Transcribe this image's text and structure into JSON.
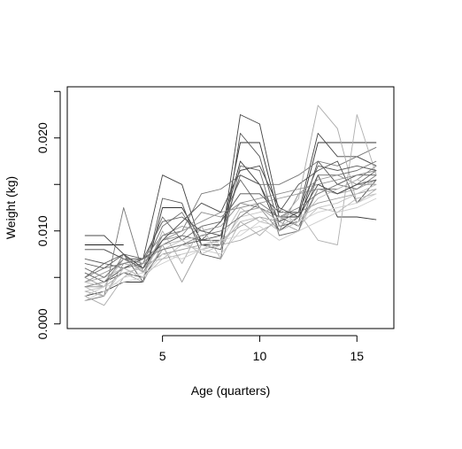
{
  "chart_data": {
    "type": "line",
    "xlabel": "Age (quarters)",
    "ylabel": "Weight (kg)",
    "xlim": [
      0.1,
      16.9
    ],
    "ylim": [
      -0.0005,
      0.0255
    ],
    "x_ticks": [
      5,
      10,
      15
    ],
    "x_tick_labels": [
      "5",
      "10",
      "15"
    ],
    "y_ticks": [
      0.0,
      0.005,
      0.01,
      0.015,
      0.02,
      0.025
    ],
    "y_tick_labels": [
      "0.000",
      "",
      "0.010",
      "",
      "0.020",
      ""
    ],
    "grid": false,
    "legend": "none",
    "x": [
      1,
      2,
      3,
      4,
      5,
      6,
      7,
      8,
      9,
      10,
      11,
      12,
      13,
      14,
      15,
      16
    ],
    "series": [
      {
        "color": "#222222",
        "values": [
          0.0085,
          0.0085,
          0.0085,
          null,
          null,
          null,
          null,
          null,
          null,
          null,
          null,
          null,
          null,
          null,
          null,
          null
        ]
      },
      {
        "color": "#333333",
        "values": [
          0.003,
          0.0035,
          0.0045,
          0.0045,
          0.0125,
          0.0125,
          0.009,
          0.009,
          0.0195,
          0.0195,
          0.0115,
          0.0115,
          0.0195,
          0.0195,
          0.0195,
          0.0195
        ]
      },
      {
        "color": "#444444",
        "values": [
          0.008,
          0.008,
          0.007,
          0.007,
          0.016,
          0.015,
          0.0085,
          0.0085,
          0.0225,
          0.0215,
          0.012,
          0.012,
          0.0205,
          0.018,
          0.018,
          0.017
        ]
      },
      {
        "color": "#555555",
        "values": [
          0.0065,
          0.006,
          0.0075,
          0.0045,
          0.0135,
          0.013,
          0.0075,
          0.007,
          0.0205,
          0.018,
          0.0105,
          0.011,
          0.0175,
          0.015,
          0.016,
          0.016
        ]
      },
      {
        "color": "#3a3a3a",
        "values": [
          0.004,
          0.0045,
          0.0055,
          0.005,
          0.008,
          0.0085,
          0.009,
          0.0095,
          0.0175,
          0.015,
          0.01,
          0.0115,
          0.016,
          0.0115,
          0.0115,
          0.0112
        ]
      },
      {
        "color": "#666666",
        "values": [
          0.005,
          0.0065,
          0.006,
          0.0065,
          0.0115,
          0.009,
          0.0105,
          0.011,
          0.0155,
          0.0125,
          0.0115,
          0.0105,
          0.0145,
          0.014,
          0.015,
          0.0165
        ]
      },
      {
        "color": "#777777",
        "values": [
          0.0025,
          0.003,
          0.0125,
          0.0055,
          0.0095,
          0.01,
          0.014,
          0.0145,
          0.016,
          0.015,
          0.015,
          0.016,
          0.0175,
          0.017,
          0.018,
          0.019
        ]
      },
      {
        "color": "#888888",
        "values": [
          0.004,
          0.004,
          0.0075,
          0.0055,
          0.009,
          0.0095,
          0.012,
          0.0115,
          0.013,
          0.0125,
          0.01,
          0.014,
          0.0145,
          0.0145,
          0.0155,
          0.017
        ]
      },
      {
        "color": "#505050",
        "values": [
          0.0055,
          0.0045,
          0.006,
          0.007,
          0.0085,
          0.0095,
          0.009,
          0.011,
          0.014,
          0.014,
          0.012,
          0.015,
          0.0165,
          0.0175,
          0.013,
          0.0155
        ]
      },
      {
        "color": "#999999",
        "values": [
          0.0035,
          0.003,
          0.0065,
          0.006,
          0.0075,
          0.008,
          0.0085,
          0.009,
          0.0105,
          0.0115,
          0.011,
          0.012,
          0.013,
          0.0135,
          0.014,
          0.0145
        ]
      },
      {
        "color": "#aaaaaa",
        "values": [
          0.003,
          0.002,
          0.005,
          0.0065,
          0.007,
          0.0075,
          0.008,
          0.0085,
          0.009,
          0.01,
          0.011,
          0.0135,
          0.0235,
          0.021,
          0.013,
          0.0145
        ]
      },
      {
        "color": "#b0b0b0",
        "values": [
          0.0045,
          0.005,
          0.006,
          0.005,
          0.01,
          0.0065,
          0.0105,
          0.007,
          0.011,
          0.0095,
          0.0115,
          0.012,
          0.009,
          0.0085,
          0.0225,
          0.016
        ]
      },
      {
        "color": "#a0a0a0",
        "values": [
          0.005,
          0.004,
          0.0055,
          0.0045,
          0.0085,
          0.0045,
          0.0085,
          0.008,
          0.012,
          0.0125,
          0.011,
          0.01,
          0.0145,
          0.014,
          0.0145,
          0.0155
        ]
      },
      {
        "color": "#bbbbbb",
        "values": [
          0.004,
          0.003,
          0.006,
          0.005,
          0.007,
          0.0085,
          0.008,
          0.009,
          0.0125,
          0.011,
          0.0105,
          0.0115,
          0.0125,
          0.012,
          0.0135,
          0.014
        ]
      },
      {
        "color": "#c4c4c4",
        "values": [
          0.0035,
          0.004,
          0.007,
          0.0055,
          0.008,
          0.009,
          0.0095,
          0.0085,
          0.0115,
          0.012,
          0.0125,
          0.0105,
          0.0125,
          0.013,
          0.014,
          0.015
        ]
      },
      {
        "color": "#8c8c8c",
        "values": [
          0.0045,
          0.0055,
          0.0065,
          0.007,
          0.0095,
          0.0105,
          0.01,
          0.0105,
          0.013,
          0.0135,
          0.014,
          0.0145,
          0.015,
          0.0155,
          0.016,
          0.0165
        ]
      },
      {
        "color": "#6e6e6e",
        "values": [
          0.006,
          0.005,
          0.007,
          0.006,
          0.0105,
          0.012,
          0.0085,
          0.008,
          0.017,
          0.0165,
          0.0095,
          0.01,
          0.016,
          0.016,
          0.0165,
          0.0175
        ]
      },
      {
        "color": "#7a7a7a",
        "values": [
          0.005,
          0.006,
          0.0065,
          0.007,
          0.008,
          0.0085,
          0.0095,
          0.01,
          0.0115,
          0.013,
          0.0115,
          0.0125,
          0.014,
          0.015,
          0.0145,
          0.016
        ]
      },
      {
        "color": "#cccccc",
        "values": [
          0.0025,
          0.0035,
          0.005,
          0.0055,
          0.0065,
          0.0075,
          0.008,
          0.0075,
          0.01,
          0.0105,
          0.009,
          0.01,
          0.011,
          0.012,
          0.0125,
          0.0135
        ]
      },
      {
        "color": "#959595",
        "values": [
          0.004,
          0.0045,
          0.007,
          0.0065,
          0.009,
          0.01,
          0.011,
          0.012,
          0.0125,
          0.013,
          0.0135,
          0.014,
          0.0155,
          0.016,
          0.015,
          0.015
        ]
      },
      {
        "color": "#5c5c5c",
        "values": [
          0.007,
          0.0065,
          0.0075,
          0.007,
          0.011,
          0.0115,
          0.01,
          0.0095,
          0.016,
          0.015,
          0.011,
          0.012,
          0.017,
          0.0165,
          0.017,
          0.0165
        ]
      },
      {
        "color": "#b8b8b8",
        "values": [
          0.0045,
          0.004,
          0.0055,
          0.006,
          0.0085,
          0.009,
          0.0075,
          0.0085,
          0.011,
          0.0115,
          0.01,
          0.011,
          0.0135,
          0.0145,
          0.0155,
          0.015
        ]
      },
      {
        "color": "#d0d0d0",
        "values": [
          0.003,
          0.004,
          0.0045,
          0.005,
          0.0075,
          0.007,
          0.008,
          0.009,
          0.0095,
          0.011,
          0.0115,
          0.011,
          0.012,
          0.0125,
          0.013,
          0.014
        ]
      },
      {
        "color": "#484848",
        "values": [
          0.0095,
          0.0095,
          0.0075,
          0.006,
          0.009,
          0.011,
          0.013,
          0.012,
          0.0165,
          0.017,
          0.0125,
          0.0115,
          0.015,
          0.014,
          0.015,
          0.0155
        ]
      }
    ]
  }
}
